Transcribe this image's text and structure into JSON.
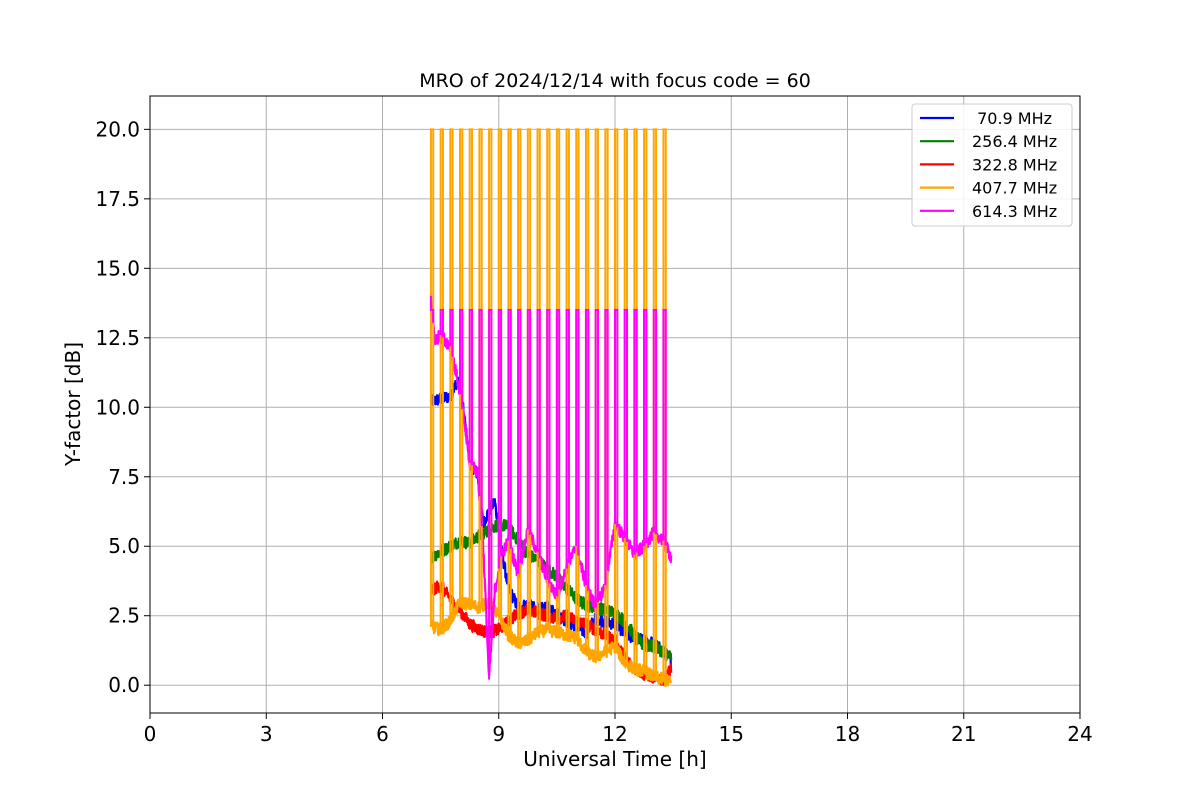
{
  "chart_data": {
    "type": "line",
    "title": "MRO of 2024/12/14 with focus code = 60",
    "xlabel": "Universal Time [h]",
    "ylabel": "Y-factor [dB]",
    "xlim": [
      0,
      24
    ],
    "ylim": [
      -1.0,
      21.2
    ],
    "xticks": [
      0,
      3,
      6,
      9,
      12,
      15,
      18,
      21,
      24
    ],
    "xtick_labels": [
      "0",
      "3",
      "6",
      "9",
      "12",
      "15",
      "18",
      "21",
      "24"
    ],
    "yticks": [
      0.0,
      2.5,
      5.0,
      7.5,
      10.0,
      12.5,
      15.0,
      17.5,
      20.0
    ],
    "ytick_labels": [
      "0.0",
      "2.5",
      "5.0",
      "7.5",
      "10.0",
      "12.5",
      "15.0",
      "17.5",
      "20.0"
    ],
    "grid": true,
    "legend_position": "top-right",
    "series": [
      {
        "name": " 70.9 MHz",
        "color": "#0000ff",
        "x": [
          7.25,
          7.5,
          7.75,
          7.95,
          8.1,
          8.25,
          8.45,
          8.6,
          8.75,
          8.9,
          9.05,
          9.25,
          9.5,
          9.75,
          10.0,
          10.25,
          10.5,
          10.75,
          11.0,
          11.25,
          11.5,
          11.75,
          12.0,
          12.25,
          12.5,
          12.75,
          13.0,
          13.25,
          13.45
        ],
        "values": [
          10.2,
          10.3,
          10.4,
          11.0,
          9.8,
          8.0,
          7.6,
          5.8,
          6.3,
          6.6,
          5.0,
          3.5,
          2.8,
          2.9,
          2.7,
          2.8,
          2.6,
          2.3,
          2.1,
          1.9,
          2.4,
          2.3,
          2.2,
          1.9,
          1.7,
          1.6,
          1.5,
          1.2,
          0.9
        ]
      },
      {
        "name": "256.4 MHz",
        "color": "#008000",
        "x": [
          7.25,
          7.5,
          7.75,
          8.0,
          8.25,
          8.5,
          8.75,
          9.0,
          9.25,
          9.5,
          9.75,
          10.0,
          10.25,
          10.5,
          10.75,
          11.0,
          11.25,
          11.5,
          11.75,
          12.0,
          12.25,
          12.5,
          12.75,
          13.0,
          13.25,
          13.45
        ],
        "values": [
          4.6,
          4.8,
          5.0,
          5.2,
          5.1,
          5.4,
          5.6,
          5.8,
          5.7,
          5.2,
          4.7,
          4.5,
          4.2,
          3.9,
          3.5,
          3.1,
          2.9,
          2.8,
          2.7,
          2.6,
          2.3,
          1.8,
          1.4,
          1.4,
          1.2,
          1.0
        ]
      },
      {
        "name": "322.8 MHz",
        "color": "#ff0000",
        "x": [
          7.25,
          7.5,
          7.75,
          8.0,
          8.25,
          8.5,
          8.75,
          9.0,
          9.25,
          9.5,
          9.75,
          10.0,
          10.25,
          10.5,
          10.75,
          11.0,
          11.25,
          11.5,
          11.75,
          12.0,
          12.25,
          12.5,
          12.75,
          13.0,
          13.25,
          13.45
        ],
        "values": [
          3.4,
          3.6,
          3.1,
          2.7,
          2.2,
          2.0,
          1.9,
          2.0,
          2.3,
          2.6,
          2.7,
          2.6,
          2.5,
          2.4,
          2.5,
          2.3,
          2.2,
          2.0,
          1.8,
          1.6,
          1.0,
          0.6,
          0.4,
          0.3,
          0.2,
          0.6
        ]
      },
      {
        "name": "407.7 MHz",
        "color": "#ffa500",
        "x": [
          7.25,
          7.5,
          7.75,
          8.0,
          8.25,
          8.5,
          8.75,
          9.0,
          9.25,
          9.5,
          9.75,
          10.0,
          10.25,
          10.5,
          10.75,
          11.0,
          11.25,
          11.5,
          11.75,
          12.0,
          12.25,
          12.5,
          12.75,
          13.0,
          13.25,
          13.45
        ],
        "values": [
          2.1,
          2.0,
          2.3,
          3.0,
          2.9,
          2.8,
          3.0,
          2.5,
          1.8,
          1.5,
          1.6,
          1.9,
          2.0,
          1.9,
          1.8,
          1.7,
          1.2,
          1.0,
          1.2,
          1.4,
          0.8,
          0.6,
          0.5,
          0.3,
          0.2,
          0.1
        ],
        "spike_peak": 20.0
      },
      {
        "name": "614.3 MHz",
        "color": "#ff00ff",
        "x": [
          7.25,
          7.35,
          7.5,
          7.75,
          7.95,
          8.1,
          8.25,
          8.45,
          8.6,
          8.75,
          8.9,
          9.05,
          9.25,
          9.5,
          9.75,
          10.0,
          10.25,
          10.5,
          10.75,
          11.0,
          11.25,
          11.5,
          11.75,
          12.0,
          12.25,
          12.5,
          12.75,
          13.0,
          13.25,
          13.45
        ],
        "values": [
          14.0,
          12.4,
          12.6,
          12.2,
          10.9,
          9.6,
          8.0,
          7.7,
          5.0,
          0.2,
          3.4,
          4.6,
          5.2,
          4.0,
          5.6,
          4.8,
          3.8,
          3.2,
          4.2,
          5.0,
          3.6,
          2.8,
          3.6,
          5.8,
          5.3,
          4.7,
          5.0,
          5.5,
          5.2,
          4.6
        ],
        "spike_peak": 13.5
      }
    ],
    "calibration_spikes_x": [
      7.25,
      7.5,
      7.75,
      8.0,
      8.25,
      8.5,
      8.75,
      9.0,
      9.25,
      9.5,
      9.75,
      10.0,
      10.25,
      10.5,
      10.75,
      11.0,
      11.25,
      11.5,
      11.75,
      12.0,
      12.25,
      12.5,
      12.75,
      13.0,
      13.25
    ]
  }
}
